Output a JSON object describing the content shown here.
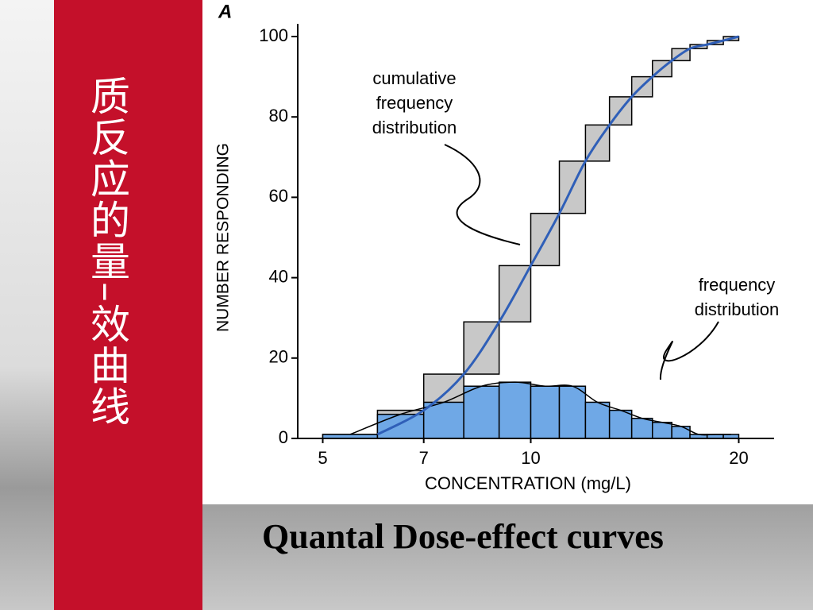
{
  "slide_title": "质反应的量–效曲线",
  "caption": "Quantal Dose-effect curves",
  "chart_data": {
    "type": "histogram",
    "panel_label": "A",
    "xlabel": "CONCENTRATION (mg/L)",
    "ylabel": "NUMBER RESPONDING",
    "xscale": "log",
    "bins": [
      5,
      6,
      7,
      8,
      9,
      10,
      11,
      12,
      13,
      14,
      15,
      16,
      17,
      18,
      19,
      20
    ],
    "values": [
      1,
      6,
      9,
      13,
      14,
      13,
      13,
      9,
      7,
      5,
      4,
      3,
      1,
      1,
      1
    ],
    "color": "#6fa8e6",
    "cumulative_color": "#c8c8c8",
    "curve_color": "#2f5fb8",
    "xlim": [
      4.6,
      22.5
    ],
    "xticks": [
      5,
      7,
      10,
      20
    ],
    "ylim": [
      0,
      100
    ],
    "yticks": [
      0,
      20,
      40,
      60,
      80,
      100
    ],
    "annotations": [
      "cumulative frequency distribution",
      "frequency distribution"
    ]
  }
}
